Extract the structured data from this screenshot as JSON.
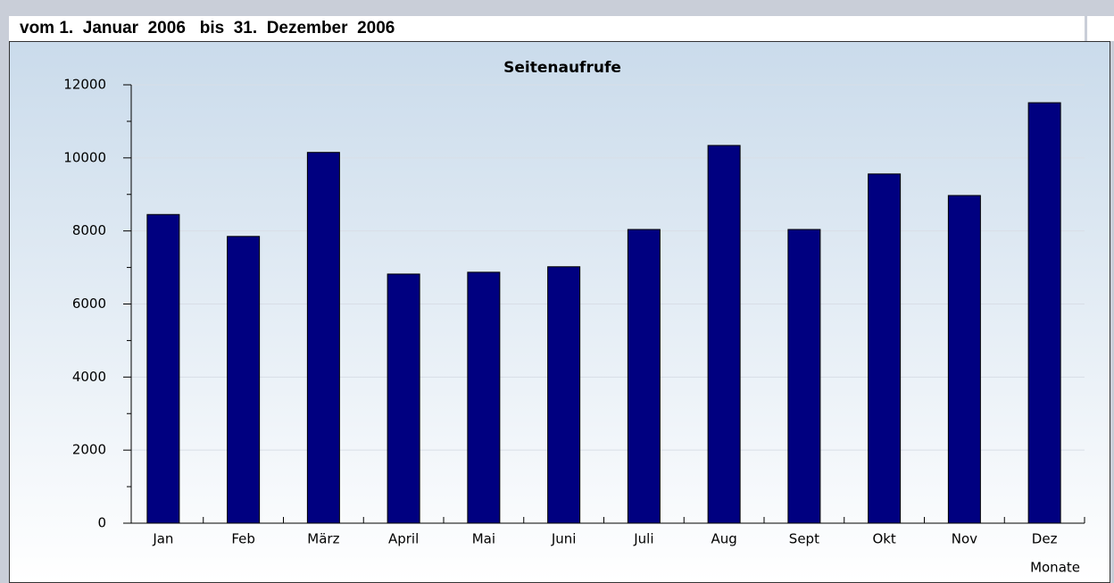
{
  "header": {
    "period": "vom 1.  Januar  2006   bis  31.  Dezember  2006"
  },
  "chart_data": {
    "type": "bar",
    "title": "Seitenaufrufe",
    "x_label": "Monate",
    "categories": [
      "Jan",
      "Feb",
      "März",
      "April",
      "Mai",
      "Juni",
      "Juli",
      "Aug",
      "Sept",
      "Okt",
      "Nov",
      "Dez"
    ],
    "values": [
      8450,
      7850,
      10150,
      6820,
      6870,
      7020,
      8040,
      10340,
      8040,
      9560,
      8970,
      11510
    ],
    "color": "#000080",
    "ylim": [
      0,
      12000
    ],
    "yticks": [
      0,
      2000,
      4000,
      6000,
      8000,
      10000,
      12000
    ],
    "yticks_minor": [
      1000,
      3000,
      5000,
      7000,
      9000,
      11000
    ],
    "grid": true
  }
}
